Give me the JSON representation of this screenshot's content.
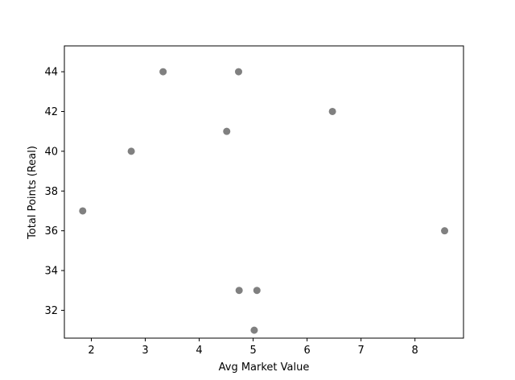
{
  "chart_data": {
    "type": "scatter",
    "title": "",
    "xlabel": "Avg Market Value",
    "ylabel": "Total Points (Real)",
    "xlim": [
      1.5,
      8.9
    ],
    "ylim": [
      30.6,
      45.3
    ],
    "xticks": [
      2,
      3,
      4,
      5,
      6,
      7,
      8
    ],
    "yticks": [
      32,
      34,
      36,
      38,
      40,
      42,
      44
    ],
    "grid": false,
    "marker_color": "#808080",
    "points": [
      {
        "x": 3.33,
        "y": 44
      },
      {
        "x": 4.73,
        "y": 44
      },
      {
        "x": 6.47,
        "y": 42
      },
      {
        "x": 4.51,
        "y": 41
      },
      {
        "x": 2.74,
        "y": 40
      },
      {
        "x": 1.84,
        "y": 37
      },
      {
        "x": 8.55,
        "y": 36
      },
      {
        "x": 4.74,
        "y": 33
      },
      {
        "x": 5.07,
        "y": 33
      },
      {
        "x": 5.02,
        "y": 31
      }
    ]
  }
}
